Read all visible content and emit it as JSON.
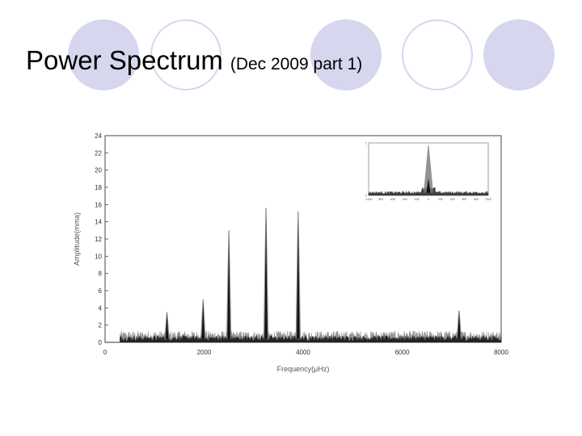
{
  "slide": {
    "title_main": "Power Spectrum",
    "title_sub": "(Dec 2009 part 1)"
  },
  "colors": {
    "decoration": "#d6d6ee",
    "signal_light": "#777777",
    "signal_dark": "#111111"
  },
  "chart_data": {
    "type": "line",
    "title": "",
    "xlabel": "Frequency(μHz)",
    "ylabel": "Amplitude(mma)",
    "xlim": [
      0,
      8000
    ],
    "ylim": [
      0,
      24
    ],
    "xticks": [
      0,
      2000,
      4000,
      6000,
      8000
    ],
    "yticks": [
      0,
      2,
      4,
      6,
      8,
      10,
      12,
      14,
      16,
      18,
      20,
      22,
      24
    ],
    "grid": false,
    "noise_floor": {
      "x_start": 300,
      "x_end": 8000,
      "typical_amplitude": 0.7
    },
    "peaks": [
      {
        "x": 1250,
        "y": 3.5
      },
      {
        "x": 1980,
        "y": 5.0
      },
      {
        "x": 2500,
        "y": 13.0
      },
      {
        "x": 3250,
        "y": 15.6
      },
      {
        "x": 3900,
        "y": 15.2
      },
      {
        "x": 7150,
        "y": 3.7
      }
    ],
    "inset": {
      "type": "line",
      "xlim": [
        -1000,
        1000
      ],
      "xticks": [
        -1000,
        -800,
        -600,
        -400,
        -200,
        0,
        200,
        400,
        600,
        800,
        1000
      ],
      "ylim": [
        0,
        1
      ],
      "yticks": [
        0,
        1
      ],
      "peaks": [
        {
          "x": 0,
          "y": 0.95
        }
      ]
    }
  }
}
